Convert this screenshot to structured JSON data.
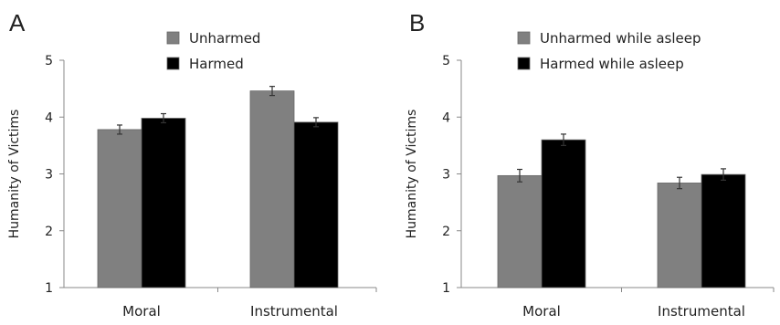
{
  "panels": [
    {
      "letter": "A"
    },
    {
      "letter": "B"
    }
  ],
  "chart_data": [
    {
      "type": "bar",
      "panel": "A",
      "title": "",
      "xlabel": "",
      "ylabel": "Humanity of Victims",
      "ylim": [
        1,
        5
      ],
      "yticks": [
        "1",
        "2",
        "3",
        "4",
        "5"
      ],
      "categories": [
        "Moral",
        "Instrumental"
      ],
      "grid": false,
      "legend_position": "top-center",
      "series": [
        {
          "name": "Unharmed",
          "color": "#808080",
          "values": [
            3.78,
            4.46
          ],
          "errors": [
            0.08,
            0.08
          ]
        },
        {
          "name": "Harmed",
          "color": "#000000",
          "values": [
            3.98,
            3.91
          ],
          "errors": [
            0.08,
            0.08
          ]
        }
      ]
    },
    {
      "type": "bar",
      "panel": "B",
      "title": "",
      "xlabel": "",
      "ylabel": "Humanity of Victims",
      "ylim": [
        1,
        5
      ],
      "yticks": [
        "1",
        "2",
        "3",
        "4",
        "5"
      ],
      "categories": [
        "Moral",
        "Instrumental"
      ],
      "grid": false,
      "legend_position": "top-center",
      "series": [
        {
          "name": "Unharmed while asleep",
          "color": "#808080",
          "values": [
            2.97,
            2.84
          ],
          "errors": [
            0.11,
            0.1
          ]
        },
        {
          "name": "Harmed while asleep",
          "color": "#000000",
          "values": [
            3.6,
            2.99
          ],
          "errors": [
            0.1,
            0.1
          ]
        }
      ]
    }
  ]
}
